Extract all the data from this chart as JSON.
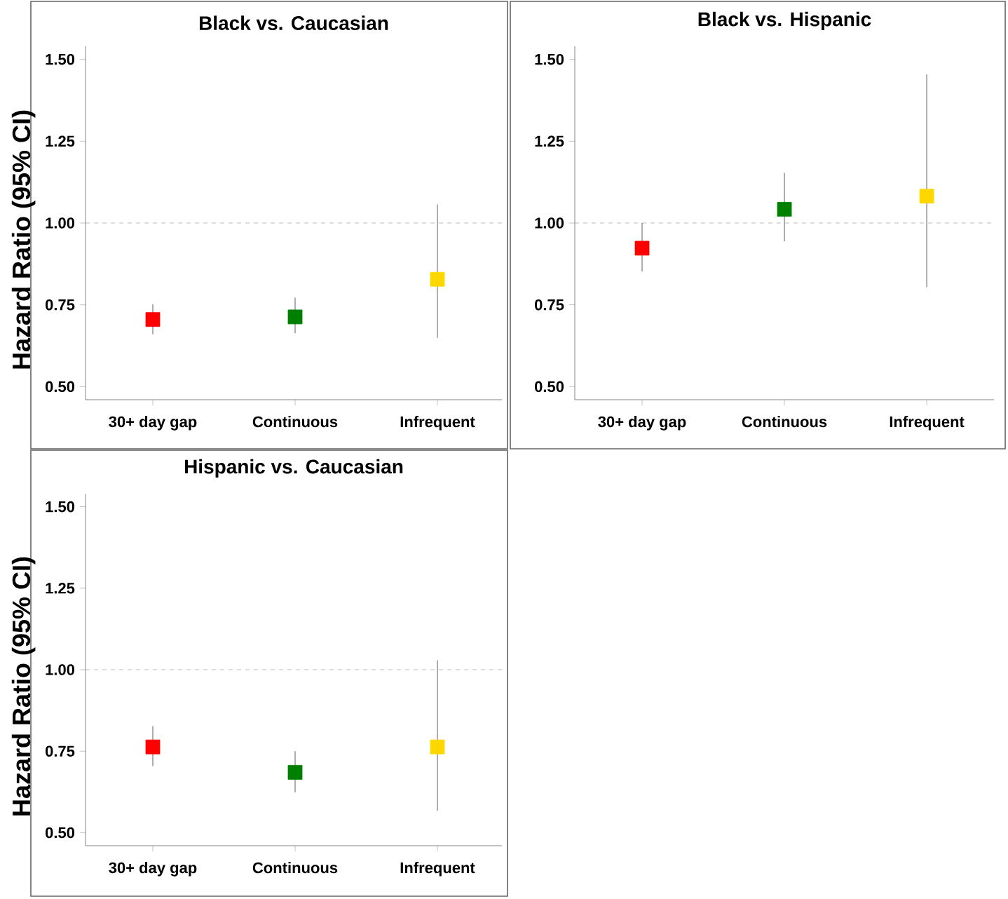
{
  "chart_data": [
    {
      "type": "scatter",
      "title": "Black vs. Caucasian",
      "ylabel": "Hazard Ratio (95% CI)",
      "categories": [
        "30+ day gap",
        "Continuous",
        "Infrequent"
      ],
      "values": [
        0.705,
        0.713,
        0.828
      ],
      "colors": [
        "#ff0000",
        "#008000",
        "#ffd700"
      ],
      "errors": [
        [
          0.66,
          0.752
        ],
        [
          0.663,
          0.772
        ],
        [
          0.649,
          1.057
        ]
      ],
      "marker": "square",
      "ylim": [
        0.46,
        1.54
      ],
      "yticks": [
        {
          "value": 0.5,
          "label": "0.50"
        },
        {
          "value": 0.75,
          "label": "0.75"
        },
        {
          "value": 1.0,
          "label": "1.00"
        },
        {
          "value": 1.25,
          "label": "1.25"
        },
        {
          "value": 1.5,
          "label": "1.50"
        }
      ],
      "ref_lines": [
        {
          "axis": "y",
          "value": 1.0,
          "color": "#aaaaaa",
          "line_style": "dashed"
        }
      ]
    },
    {
      "type": "scatter",
      "title": "Black vs. Hispanic",
      "categories": [
        "30+ day gap",
        "Continuous",
        "Infrequent"
      ],
      "values": [
        0.923,
        1.042,
        1.082
      ],
      "colors": [
        "#ff0000",
        "#008000",
        "#ffd700"
      ],
      "errors": [
        [
          0.852,
          1.0
        ],
        [
          0.944,
          1.153
        ],
        [
          0.804,
          1.454
        ]
      ],
      "marker": "square",
      "ylim": [
        0.46,
        1.54
      ],
      "yticks": [
        {
          "value": 0.5,
          "label": "0.50"
        },
        {
          "value": 0.75,
          "label": "0.75"
        },
        {
          "value": 1.0,
          "label": "1.00"
        },
        {
          "value": 1.25,
          "label": "1.25"
        },
        {
          "value": 1.5,
          "label": "1.50"
        }
      ],
      "ref_lines": [
        {
          "axis": "y",
          "value": 1.0,
          "color": "#aaaaaa",
          "line_style": "dashed"
        }
      ]
    },
    {
      "type": "scatter",
      "title": "Hispanic vs. Caucasian",
      "ylabel": "Hazard Ratio (95% CI)",
      "categories": [
        "30+ day gap",
        "Continuous",
        "Infrequent"
      ],
      "values": [
        0.763,
        0.685,
        0.763
      ],
      "colors": [
        "#ff0000",
        "#008000",
        "#ffd700"
      ],
      "errors": [
        [
          0.704,
          0.827
        ],
        [
          0.624,
          0.75
        ],
        [
          0.567,
          1.029
        ]
      ],
      "marker": "square",
      "ylim": [
        0.46,
        1.54
      ],
      "yticks": [
        {
          "value": 0.5,
          "label": "0.50"
        },
        {
          "value": 0.75,
          "label": "0.75"
        },
        {
          "value": 1.0,
          "label": "1.00"
        },
        {
          "value": 1.25,
          "label": "1.25"
        },
        {
          "value": 1.5,
          "label": "1.50"
        }
      ],
      "ref_lines": [
        {
          "axis": "y",
          "value": 1.0,
          "color": "#aaaaaa",
          "line_style": "dashed"
        }
      ]
    }
  ]
}
